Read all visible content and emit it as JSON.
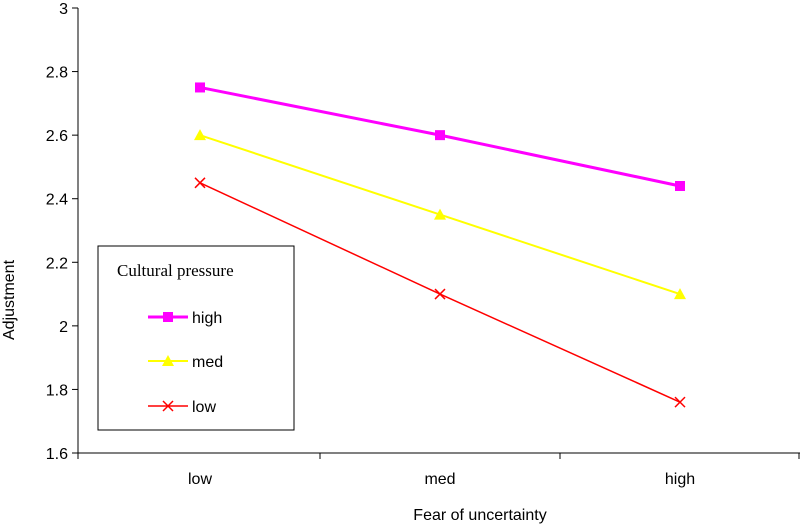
{
  "chart_data": {
    "type": "line",
    "title": "",
    "xlabel": "Fear of uncertainty",
    "ylabel": "Adjustment",
    "categories": [
      "low",
      "med",
      "high"
    ],
    "ylim": [
      1.6,
      3
    ],
    "yticks": [
      "1.6",
      "1.8",
      "2",
      "2.2",
      "2.4",
      "2.6",
      "2.8",
      "3"
    ],
    "grid": false,
    "legend": {
      "title": "Cultural pressure",
      "placement": "left-center"
    },
    "series": [
      {
        "name": "high",
        "values": [
          2.75,
          2.6,
          2.44
        ],
        "color": "#FF00FF",
        "marker": "square"
      },
      {
        "name": "med",
        "values": [
          2.6,
          2.35,
          2.1
        ],
        "color": "#FFFF00",
        "marker": "triangle"
      },
      {
        "name": "low",
        "values": [
          2.45,
          2.1,
          1.76
        ],
        "color": "#FF0000",
        "marker": "x"
      }
    ]
  }
}
